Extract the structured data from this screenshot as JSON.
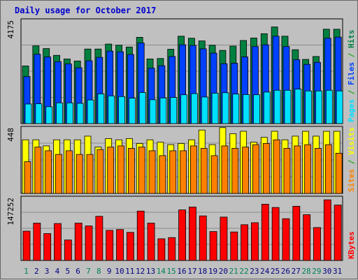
{
  "chart_data": {
    "type": "bar",
    "title": "Daily usage for October 2017",
    "categories": [
      "1",
      "2",
      "3",
      "4",
      "5",
      "6",
      "7",
      "8",
      "9",
      "10",
      "11",
      "12",
      "13",
      "14",
      "15",
      "16",
      "17",
      "18",
      "19",
      "20",
      "21",
      "22",
      "23",
      "24",
      "25",
      "26",
      "27",
      "28",
      "29",
      "30",
      "31"
    ],
    "weekend_days": [
      1,
      7,
      8,
      14,
      15,
      21,
      22,
      28,
      29
    ],
    "panels": [
      {
        "name": "hits_files_pages",
        "axis_max_label": "4175",
        "ylim": [
          0,
          4650
        ],
        "ylabel_parts": [
          {
            "text": "Pages",
            "color": "#00e0ff"
          },
          {
            "text": " / ",
            "color": "#00a000"
          },
          {
            "text": "Files",
            "color": "#0040ff"
          },
          {
            "text": " / ",
            "color": "#00a000"
          },
          {
            "text": "Hits",
            "color": "#008040"
          }
        ],
        "series": [
          {
            "name": "Hits",
            "color": "#008040",
            "values": [
              2560,
              3450,
              3330,
              3030,
              2870,
              2780,
              3310,
              3310,
              3530,
              3480,
              3400,
              3830,
              2870,
              2890,
              3300,
              3880,
              3790,
              3670,
              3480,
              3250,
              3440,
              3690,
              3800,
              3990,
              4290,
              3880,
              3280,
              2850,
              2980,
              4190,
              4190
            ]
          },
          {
            "name": "Files",
            "color": "#0040ff",
            "values": [
              2090,
              3080,
              2960,
              2750,
              2650,
              2480,
              2790,
              2940,
              3220,
              3190,
              3070,
              3580,
              2460,
              2570,
              2980,
              3500,
              3470,
              3320,
              3130,
              2660,
              2680,
              2960,
              3420,
              3500,
              3880,
              3420,
              2840,
              2630,
              2720,
              3790,
              3840
            ]
          },
          {
            "name": "Pages",
            "color": "#00e0ff",
            "values": [
              870,
              880,
              750,
              920,
              920,
              900,
              1050,
              1320,
              1230,
              1200,
              1130,
              1380,
              1060,
              1140,
              1160,
              1280,
              1330,
              1180,
              1350,
              1370,
              1310,
              1290,
              1280,
              1400,
              1480,
              1480,
              1530,
              1450,
              1450,
              1480,
              1450
            ]
          }
        ]
      },
      {
        "name": "visits_sites",
        "axis_max_label": "448",
        "ylim": [
          0,
          550
        ],
        "ylabel_parts": [
          {
            "text": "Sites",
            "color": "#ff8000"
          },
          {
            "text": " / ",
            "color": "#00a000"
          },
          {
            "text": "Visits",
            "color": "#ffff00"
          }
        ],
        "series": [
          {
            "name": "Visits",
            "color": "#ffff00",
            "values": [
              440,
              440,
              390,
              440,
              440,
              440,
              470,
              380,
              450,
              440,
              450,
              410,
              440,
              420,
              400,
              410,
              440,
              520,
              400,
              540,
              490,
              510,
              420,
              460,
              510,
              440,
              470,
              510,
              470,
              510,
              510
            ]
          },
          {
            "name": "Sites",
            "color": "#ff8000",
            "values": [
              260,
              380,
              350,
              320,
              350,
              320,
              320,
              360,
              380,
              390,
              370,
              380,
              350,
              310,
              350,
              350,
              390,
              370,
              310,
              390,
              370,
              380,
              400,
              410,
              440,
              370,
              390,
              400,
              370,
              400,
              330
            ]
          }
        ]
      },
      {
        "name": "kbytes",
        "axis_max_label": "147252",
        "ylim": [
          0,
          160000
        ],
        "ylabel_parts": [
          {
            "text": "KBytes",
            "color": "#ff0000"
          }
        ],
        "series": [
          {
            "name": "KBytes",
            "color": "#ff0000",
            "values": [
              73000,
              93000,
              67000,
              92000,
              51000,
              93000,
              86000,
              110000,
              75000,
              77000,
              70000,
              123000,
              93000,
              54000,
              57000,
              126000,
              133000,
              111000,
              72000,
              108000,
              71000,
              89000,
              94000,
              140000,
              132000,
              104000,
              135000,
              114000,
              82000,
              151000,
              138000
            ]
          }
        ]
      }
    ]
  }
}
